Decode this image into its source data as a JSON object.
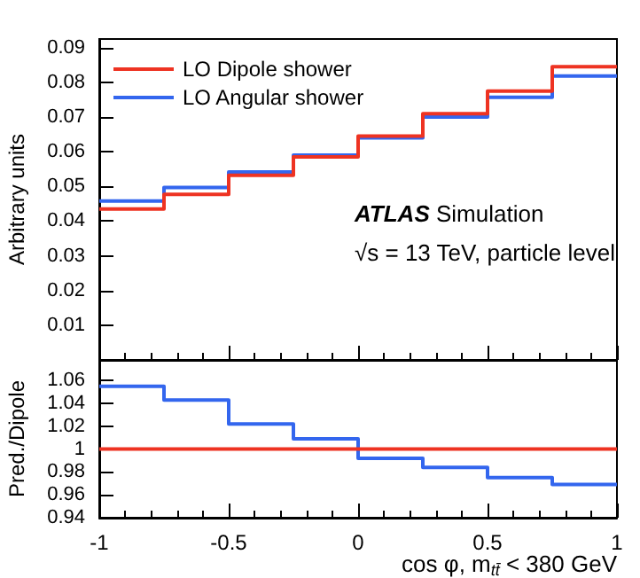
{
  "chart_data": [
    {
      "type": "histogram",
      "ylabel": "Arbitrary units",
      "annotations": [
        "ATLAS Simulation",
        "√s = 13 TeV, particle level"
      ],
      "bins": [
        -1,
        -0.75,
        -0.5,
        -0.25,
        0,
        0.25,
        0.5,
        0.75,
        1
      ],
      "series": [
        {
          "name": "LO Dipole shower",
          "color": "#ee3322",
          "values": [
            0.0435,
            0.0477,
            0.0532,
            0.0585,
            0.0645,
            0.071,
            0.0775,
            0.0845
          ]
        },
        {
          "name": "LO Angular shower",
          "color": "#3366ee",
          "values": [
            0.0458,
            0.0497,
            0.0542,
            0.059,
            0.064,
            0.07,
            0.0757,
            0.0818
          ]
        }
      ],
      "xlim": [
        -1,
        1
      ],
      "xticks": [
        -1,
        -0.5,
        0,
        0.5,
        1
      ],
      "ylim": [
        0,
        0.0925
      ],
      "yticks": [
        0.01,
        0.02,
        0.03,
        0.04,
        0.05,
        0.06,
        0.07,
        0.08,
        0.09
      ],
      "tick_labels": "y",
      "legend": "top left",
      "grid": false
    },
    {
      "type": "histogram",
      "xlabel": "cos φ, m$_{tt̄}$ < 380 GeV",
      "ylabel": "Pred./Dipole",
      "bins": [
        -1,
        -0.75,
        -0.5,
        -0.25,
        0,
        0.25,
        0.5,
        0.75,
        1
      ],
      "series": [
        {
          "color": "#ee3322",
          "values": [
            1,
            1,
            1,
            1,
            1,
            1,
            1,
            1
          ]
        },
        {
          "color": "#3366ee",
          "values": [
            1.055,
            1.043,
            1.022,
            1.009,
            0.992,
            0.984,
            0.975,
            0.969
          ]
        }
      ],
      "xlim": [
        -1,
        1
      ],
      "xticks": [
        -1,
        -0.5,
        0,
        0.5,
        1
      ],
      "ylim": [
        0.94,
        1.078
      ],
      "yticks": [
        0.94,
        0.96,
        0.98,
        1,
        1.02,
        1.04,
        1.06
      ],
      "grid": false
    }
  ]
}
